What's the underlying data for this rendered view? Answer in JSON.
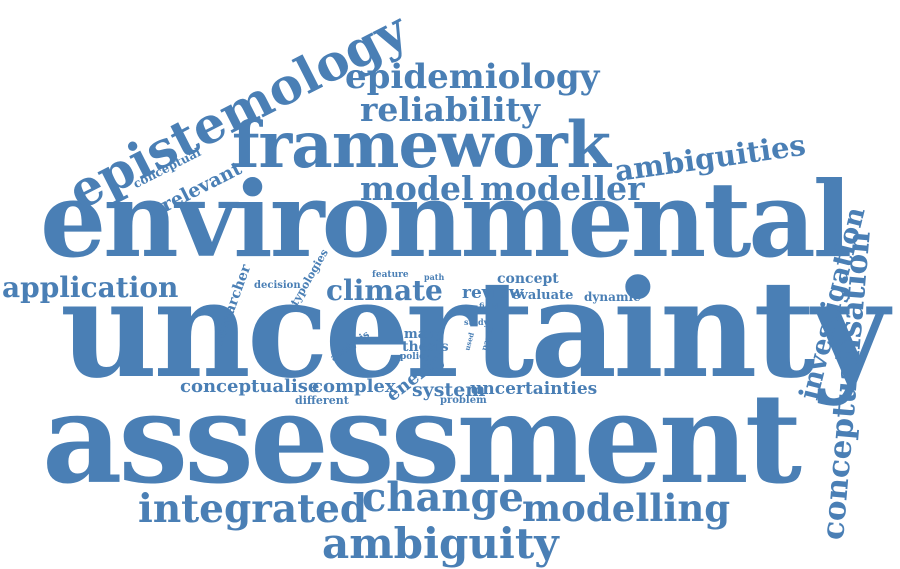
{
  "word_cloud": {
    "color": "#4a7fb5",
    "words": [
      {
        "id": "environmental",
        "text": "environmental"
      },
      {
        "id": "uncertainty",
        "text": "uncertainty"
      },
      {
        "id": "assessment",
        "text": "assessment"
      },
      {
        "id": "framework",
        "text": "framework"
      },
      {
        "id": "epistemology",
        "text": "epistemology"
      },
      {
        "id": "epidemiology",
        "text": "epidemiology"
      },
      {
        "id": "reliability",
        "text": "reliability"
      },
      {
        "id": "model",
        "text": "model"
      },
      {
        "id": "modeller",
        "text": "modeller"
      },
      {
        "id": "ambiguities",
        "text": "ambiguities"
      },
      {
        "id": "application",
        "text": "application"
      },
      {
        "id": "climate",
        "text": "climate"
      },
      {
        "id": "integrated",
        "text": "integrated"
      },
      {
        "id": "change",
        "text": "change"
      },
      {
        "id": "modelling",
        "text": "modelling"
      },
      {
        "id": "ambiguity",
        "text": "ambiguity"
      },
      {
        "id": "investigation",
        "text": "investigation"
      },
      {
        "id": "conceptualisation",
        "text": "conceptualisation"
      },
      {
        "id": "conceptual",
        "text": "conceptual"
      },
      {
        "id": "relevant",
        "text": "relevant"
      },
      {
        "id": "researcher",
        "text": "researcher"
      },
      {
        "id": "decision",
        "text": "decision"
      },
      {
        "id": "typologies",
        "text": "typologies"
      },
      {
        "id": "feature",
        "text": "feature"
      },
      {
        "id": "path",
        "text": "path"
      },
      {
        "id": "concept",
        "text": "concept"
      },
      {
        "id": "review",
        "text": "review"
      },
      {
        "id": "evaluate",
        "text": "evaluate"
      },
      {
        "id": "dynamic",
        "text": "dynamic"
      },
      {
        "id": "field",
        "text": "field"
      },
      {
        "id": "study",
        "text": "study"
      },
      {
        "id": "paper",
        "text": "paper"
      },
      {
        "id": "used",
        "text": "used"
      },
      {
        "id": "many",
        "text": "many"
      },
      {
        "id": "thesis",
        "text": "thesis"
      },
      {
        "id": "policy",
        "text": "policy"
      },
      {
        "id": "analysis",
        "text": "analysis"
      },
      {
        "id": "energy",
        "text": "energy"
      },
      {
        "id": "conceptualise",
        "text": "conceptualise"
      },
      {
        "id": "complex",
        "text": "complex"
      },
      {
        "id": "different",
        "text": "different"
      },
      {
        "id": "system",
        "text": "system"
      },
      {
        "id": "problem",
        "text": "problem"
      },
      {
        "id": "uncertainties",
        "text": "uncertainties"
      }
    ]
  }
}
